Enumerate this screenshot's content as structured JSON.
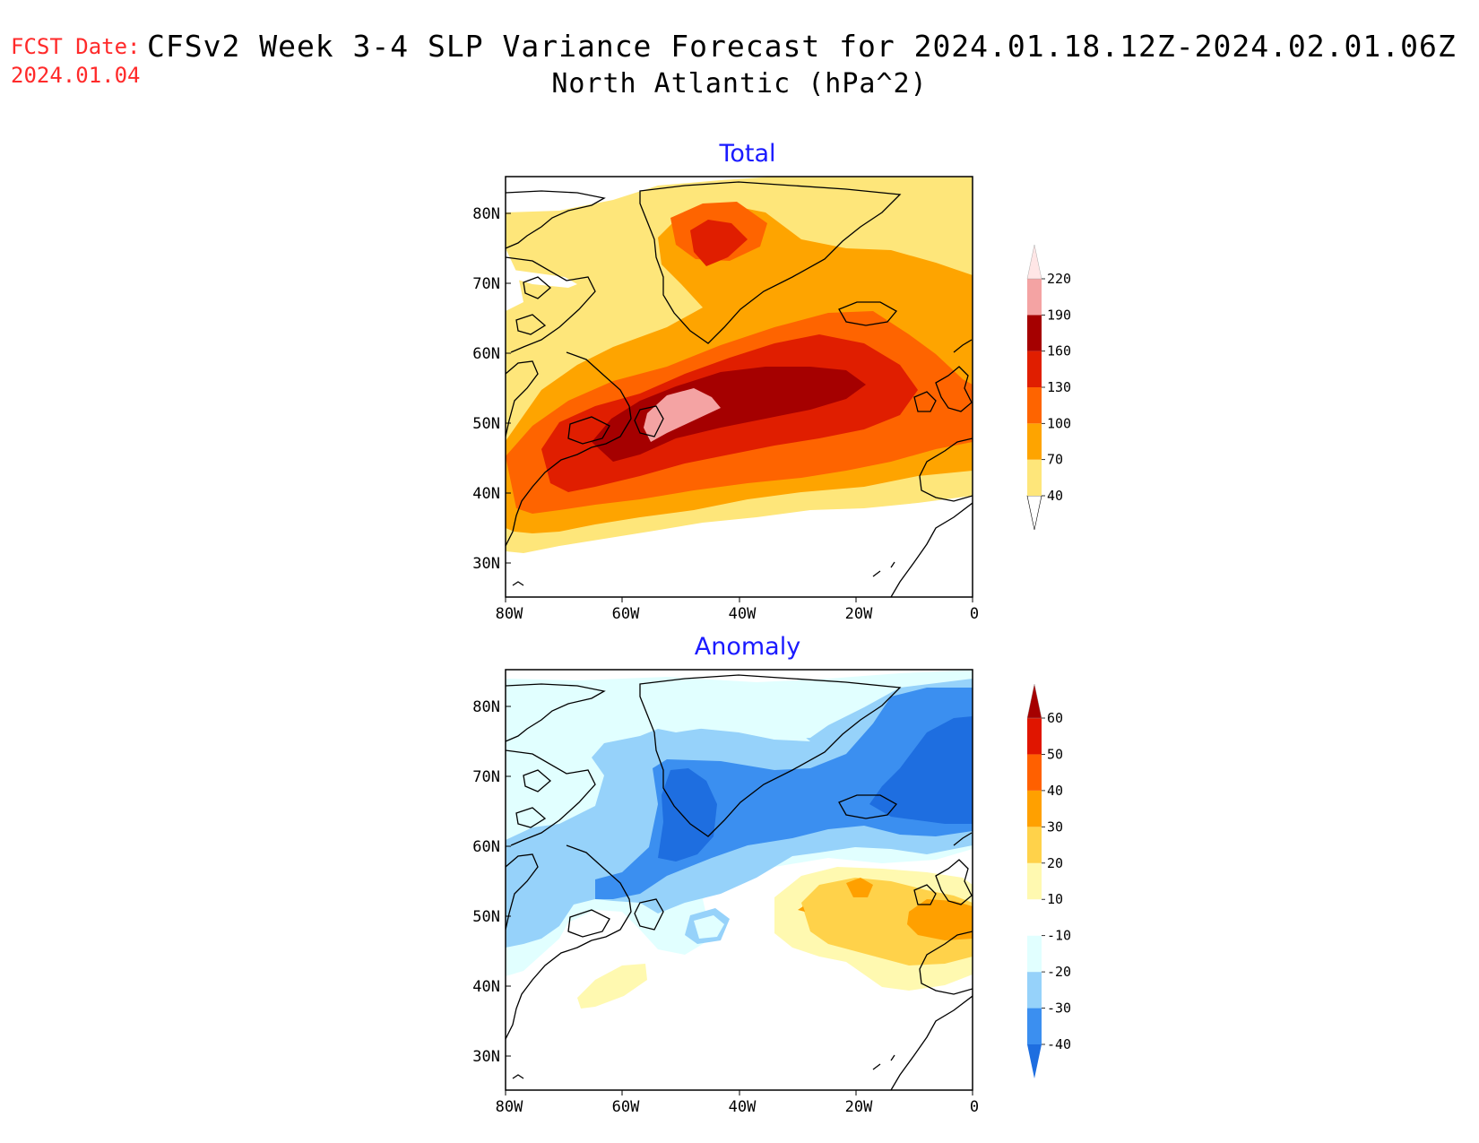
{
  "header": {
    "fcst_label": "FCST Date:",
    "fcst_date": "2024.01.04",
    "title_line1": "CFSv2 Week 3-4 SLP Variance Forecast for 2024.01.18.12Z-2024.02.01.06Z",
    "title_line2": "North Atlantic (hPa^2)"
  },
  "map": {
    "lon_labels": [
      "80W",
      "60W",
      "40W",
      "20W",
      "0"
    ],
    "lat_labels": [
      "80N",
      "70N",
      "60N",
      "50N",
      "40N",
      "30N"
    ]
  },
  "panels": [
    {
      "title": "Total",
      "colorbar": {
        "levels": [
          "40",
          "70",
          "100",
          "130",
          "160",
          "190",
          "220"
        ],
        "colors": [
          "#ffffff",
          "#fee67a",
          "#fea400",
          "#fe6400",
          "#e01e00",
          "#a50000",
          "#f4a3a3",
          "#ffe6e6"
        ]
      }
    },
    {
      "title": "Anomaly",
      "colorbar": {
        "levels": [
          "-40",
          "-30",
          "-20",
          "-10",
          "10",
          "20",
          "30",
          "40",
          "50",
          "60"
        ],
        "colors": [
          "#1e6ee0",
          "#3b8ff0",
          "#96d2fa",
          "#e1ffff",
          "#ffffff",
          "#fff9b0",
          "#ffd24a",
          "#ffa000",
          "#ff6000",
          "#e01500",
          "#a50000"
        ]
      }
    }
  ]
}
